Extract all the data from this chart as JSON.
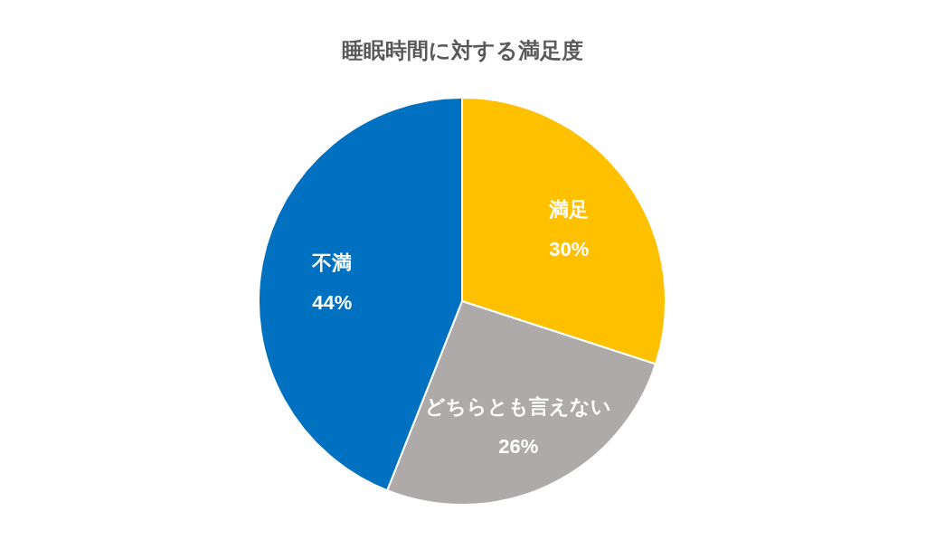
{
  "chart_data": {
    "type": "pie",
    "title": "睡眠時間に対する満足度",
    "categories": [
      "満足",
      "どちらとも言えない",
      "不満"
    ],
    "values": [
      30,
      26,
      44
    ],
    "colors": [
      "#ffc000",
      "#aeaaaa",
      "#0070c0"
    ],
    "value_labels": [
      "30%",
      "26%",
      "44%"
    ]
  }
}
